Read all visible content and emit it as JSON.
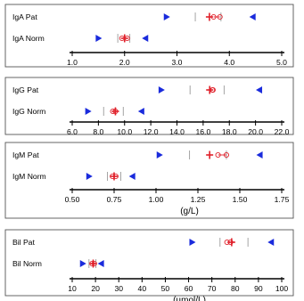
{
  "colors": {
    "range_marker": "#1a2bdc",
    "mean": "#e0202a",
    "iqr": "#9a9a9a",
    "axis": "#000000"
  },
  "chart_data": [
    {
      "type": "range-marker",
      "xlim": [
        1.0,
        5.0
      ],
      "ticks": [
        1.0,
        2.0,
        3.0,
        4.0,
        5.0
      ],
      "tick_labels": [
        "1.0",
        "2.0",
        "3.0",
        "4.0",
        "5.0"
      ],
      "xlabel": "",
      "rows": [
        {
          "label": "IgA Pat",
          "min": 2.8,
          "q1": 3.35,
          "mean": 3.62,
          "ci": [
            3.7,
            3.82
          ],
          "q3": 3.84,
          "max": 4.45
        },
        {
          "label": "IgA Norm",
          "min": 1.5,
          "q1": 1.87,
          "mean": 2.0,
          "ci": [
            1.95,
            2.05
          ],
          "q3": 2.1,
          "max": 2.4
        }
      ]
    },
    {
      "type": "range-marker",
      "xlim": [
        6.0,
        22.0
      ],
      "ticks": [
        6.0,
        8.0,
        10.0,
        12.0,
        14.0,
        16.0,
        18.0,
        20.0,
        22.0
      ],
      "tick_labels": [
        "6.0",
        "8.0",
        "10.0",
        "12.0",
        "14.0",
        "16.0",
        "18.0",
        "20.0",
        "22.0"
      ],
      "xlabel": "",
      "rows": [
        {
          "label": "IgG Pat",
          "min": 12.8,
          "q1": 15.0,
          "mean": 16.5,
          "ci": [
            16.7,
            16.75
          ],
          "q3": 17.6,
          "max": 20.3
        },
        {
          "label": "IgG Norm",
          "min": 7.2,
          "q1": 8.4,
          "mean": 9.3,
          "ci": [
            9.1,
            9.3
          ],
          "q3": 9.9,
          "max": 11.3
        }
      ]
    },
    {
      "type": "range-marker",
      "xlim": [
        0.5,
        1.75
      ],
      "ticks": [
        0.5,
        0.75,
        1.0,
        1.25,
        1.5,
        1.75
      ],
      "tick_labels": [
        "0.50",
        "0.75",
        "1.00",
        "1.25",
        "1.50",
        "1.75"
      ],
      "xlabel": "(g/L)",
      "rows": [
        {
          "label": "IgM Pat",
          "min": 1.02,
          "q1": 1.2,
          "mean": 1.32,
          "ci": [
            1.37,
            1.42
          ],
          "q3": 1.42,
          "max": 1.62
        },
        {
          "label": "IgM  Norm",
          "min": 0.6,
          "q1": 0.71,
          "mean": 0.75,
          "ci": [
            0.74,
            0.76
          ],
          "q3": 0.79,
          "max": 0.86
        }
      ]
    },
    {
      "type": "range-marker",
      "xlim": [
        10,
        100
      ],
      "ticks": [
        10,
        20,
        30,
        40,
        50,
        60,
        70,
        80,
        90,
        100
      ],
      "tick_labels": [
        "10",
        "20",
        "30",
        "40",
        "50",
        "60",
        "70",
        "80",
        "90",
        "100"
      ],
      "xlabel": "(µmol/L)",
      "rows": [
        {
          "label": "Bil Pat",
          "min": 61.5,
          "q1": 73.5,
          "mean": 78.5,
          "ci": [
            76.5,
            78.0
          ],
          "q3": 85.5,
          "max": 95.5
        },
        {
          "label": "Bil Norm",
          "min": 14.5,
          "q1": 17.2,
          "mean": 19.0,
          "ci": [
            18.5,
            19.5
          ],
          "q3": 20.2,
          "max": 22.5
        }
      ]
    }
  ]
}
